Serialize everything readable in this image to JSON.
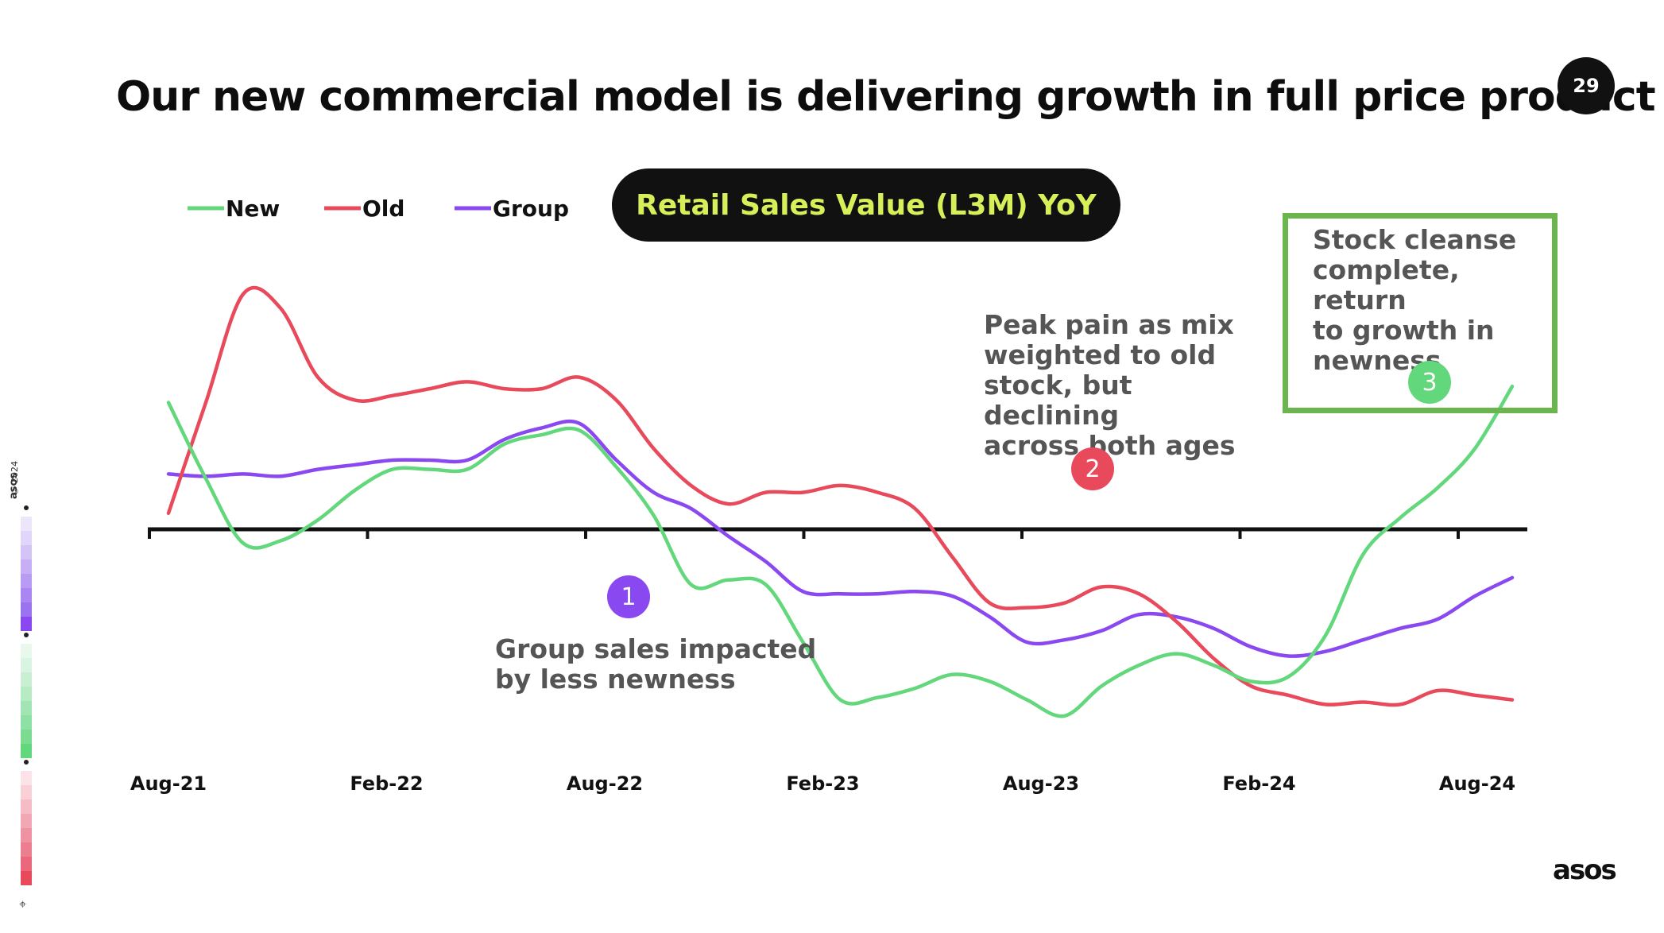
{
  "slide": {
    "title": "Our new commercial model is delivering growth in full price product",
    "page_number": "29",
    "brand": "asos",
    "side_brand": "asos",
    "side_copyright": "© 2024"
  },
  "chart_data": {
    "type": "line",
    "title": "Retail Sales Value (L3M) YoY",
    "x_tick_labels": [
      "Aug-21",
      "Feb-22",
      "Aug-22",
      "Feb-23",
      "Aug-23",
      "Feb-24",
      "Aug-24"
    ],
    "x": [
      "Aug-21",
      "Sep-21",
      "Oct-21",
      "Nov-21",
      "Dec-21",
      "Jan-22",
      "Feb-22",
      "Mar-22",
      "Apr-22",
      "May-22",
      "Jun-22",
      "Jul-22",
      "Aug-22",
      "Sep-22",
      "Oct-22",
      "Nov-22",
      "Dec-22",
      "Jan-23",
      "Feb-23",
      "Mar-23",
      "Apr-23",
      "May-23",
      "Jun-23",
      "Jul-23",
      "Aug-23",
      "Sep-23",
      "Oct-23",
      "Nov-23",
      "Dec-23",
      "Jan-24",
      "Feb-24",
      "Mar-24",
      "Apr-24",
      "May-24",
      "Jun-24",
      "Jul-24",
      "Aug-24"
    ],
    "y_axis_labels_shown": false,
    "zero_line": true,
    "legend_position": "top-left",
    "series": [
      {
        "name": "New",
        "color": "#63d77b",
        "values": [
          5.5,
          2.2,
          -0.6,
          -0.5,
          0.4,
          1.7,
          2.6,
          2.6,
          2.6,
          3.7,
          4.1,
          4.3,
          2.7,
          0.6,
          -2.4,
          -2.2,
          -2.4,
          -4.9,
          -7.4,
          -7.3,
          -6.9,
          -6.3,
          -6.6,
          -7.4,
          -8.1,
          -6.8,
          -5.9,
          -5.4,
          -5.9,
          -6.6,
          -6.4,
          -4.6,
          -1.1,
          0.5,
          1.8,
          3.5,
          6.2
        ]
      },
      {
        "name": "Old",
        "color": "#e84a5c",
        "values": [
          0.7,
          5.5,
          10.2,
          9.6,
          6.6,
          5.6,
          5.8,
          6.1,
          6.4,
          6.1,
          6.1,
          6.6,
          5.6,
          3.5,
          1.9,
          1.1,
          1.6,
          1.6,
          1.9,
          1.6,
          0.9,
          -1.2,
          -3.2,
          -3.4,
          -3.2,
          -2.5,
          -2.8,
          -4.0,
          -5.6,
          -6.8,
          -7.2,
          -7.6,
          -7.5,
          -7.6,
          -7.0,
          -7.2,
          -7.4
        ]
      },
      {
        "name": "Group",
        "color": "#8a48f0",
        "values": [
          2.4,
          2.3,
          2.4,
          2.3,
          2.6,
          2.8,
          3.0,
          3.0,
          3.0,
          3.9,
          4.4,
          4.6,
          3.0,
          1.6,
          0.9,
          -0.3,
          -1.4,
          -2.7,
          -2.8,
          -2.8,
          -2.7,
          -2.9,
          -3.8,
          -4.9,
          -4.8,
          -4.4,
          -3.7,
          -3.8,
          -4.3,
          -5.1,
          -5.5,
          -5.3,
          -4.8,
          -4.3,
          -3.9,
          -2.9,
          -2.1
        ]
      }
    ],
    "annotations": [
      {
        "marker": "1",
        "color": "#8a48f0",
        "text": "Group sales impacted\nby less newness"
      },
      {
        "marker": "2",
        "color": "#e84a5c",
        "text": "Peak pain as mix\nweighted to old\nstock, but declining\nacross both ages"
      },
      {
        "marker": "3",
        "color": "#63d77b",
        "text": "Stock cleanse\ncomplete, return\nto growth in\nnewness"
      }
    ]
  }
}
